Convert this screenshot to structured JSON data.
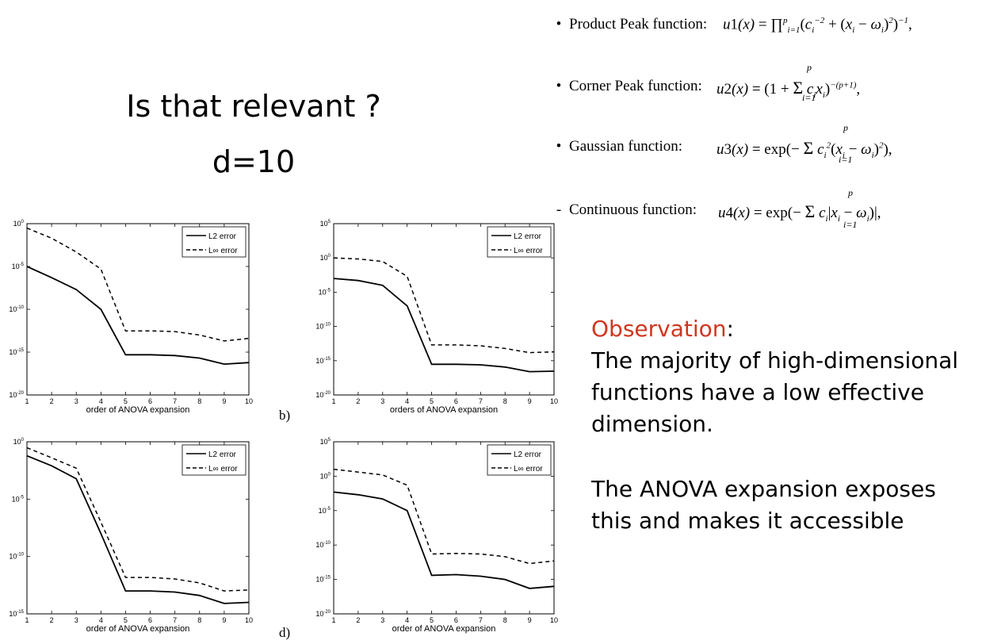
{
  "slide": {
    "title": "Is that relevant ?",
    "subtitle": "d=10",
    "observation_label": "Observation",
    "observation_colon": ":",
    "observation_text": "The majority of high-dimensional functions have a low effective dimension.",
    "observation_text2": "The ANOVA expansion exposes this and makes it accessible",
    "accent_color": "#d0361f"
  },
  "functions": [
    {
      "bullet": "•",
      "label": "Product Peak function:",
      "formula": "u1(x) = ∏_{i=1}^{p} (c_i^{-2} + (x_i − ω_i)^2)^{-1},"
    },
    {
      "bullet": "•",
      "label": "Corner Peak function:",
      "formula": "u2(x) = (1 + Σ_{i=1}^{p} c_i x_i)^{-(p+1)},"
    },
    {
      "bullet": "•",
      "label": "Gaussian function:",
      "formula": "u3(x) = exp(− Σ_{i=1}^{p} c_i^2 (x_i − ω_i)^2),"
    },
    {
      "bullet": "-",
      "label": "Continuous function:",
      "formula": "u4(x) = exp(− Σ_{i=1}^{p} c_i |x_i − ω_i|),"
    }
  ],
  "panel_labels": {
    "b": "b)",
    "d": "d)"
  },
  "chart_data": [
    {
      "type": "line",
      "yscale": "log",
      "xlabel": "order of ANOVA expansion",
      "x": [
        1,
        2,
        3,
        4,
        5,
        6,
        7,
        8,
        9,
        10
      ],
      "xlim": [
        1,
        10
      ],
      "ylim": [
        1e-20,
        1
      ],
      "yticks": [
        "10^0",
        "10^-5",
        "10^-10",
        "10^-15",
        "10^-20"
      ],
      "legend": "top-right",
      "series": [
        {
          "name": "L2 error",
          "style": "solid",
          "values": [
            1e-05,
            5e-07,
            2e-08,
            1e-10,
            5e-16,
            5e-16,
            4e-16,
            2e-16,
            4e-17,
            6e-17
          ]
        },
        {
          "name": "L∞ error",
          "style": "dashed",
          "values": [
            0.3,
            0.02,
            0.0005,
            5e-06,
            3e-13,
            3e-13,
            2.5e-13,
            1e-13,
            2e-14,
            4e-14
          ]
        }
      ]
    },
    {
      "type": "line",
      "yscale": "log",
      "xlabel": "orders of ANOVA expansion",
      "x": [
        1,
        2,
        3,
        4,
        5,
        6,
        7,
        8,
        9,
        10
      ],
      "xlim": [
        1,
        10
      ],
      "ylim": [
        1e-20,
        100000.0
      ],
      "yticks": [
        "10^5",
        "10^0",
        "10^-5",
        "10^-10",
        "10^-15",
        "10^-20"
      ],
      "legend": "top-right",
      "series": [
        {
          "name": "L2 error",
          "style": "solid",
          "values": [
            0.001,
            0.0005,
            0.0001,
            1e-07,
            3e-16,
            3e-16,
            2.5e-16,
            1.2e-16,
            2.5e-17,
            3e-17
          ]
        },
        {
          "name": "L∞ error",
          "style": "dashed",
          "values": [
            1,
            0.7,
            0.3,
            0.002,
            2e-13,
            2e-13,
            1.5e-13,
            6e-14,
            1.5e-14,
            2e-14
          ]
        }
      ]
    },
    {
      "type": "line",
      "yscale": "log",
      "xlabel": "order of ANOVA expansion",
      "x": [
        1,
        2,
        3,
        4,
        5,
        6,
        7,
        8,
        9,
        10
      ],
      "xlim": [
        1,
        10
      ],
      "ylim": [
        1e-15,
        1
      ],
      "yticks": [
        "10^0",
        "10^-5",
        "10^-10",
        "10^-15"
      ],
      "legend": "top-right",
      "series": [
        {
          "name": "L2 error",
          "style": "solid",
          "values": [
            0.06,
            0.008,
            0.0006,
            1e-08,
            1e-13,
            1e-13,
            8e-14,
            4e-14,
            8e-15,
            1e-14
          ]
        },
        {
          "name": "L∞ error",
          "style": "dashed",
          "values": [
            0.3,
            0.04,
            0.005,
            1e-07,
            1.5e-12,
            1.5e-12,
            1.1e-12,
            5e-13,
            1e-13,
            1.2e-13
          ]
        }
      ]
    },
    {
      "type": "line",
      "yscale": "log",
      "xlabel": "order of ANOVA expansion",
      "x": [
        1,
        2,
        3,
        4,
        5,
        6,
        7,
        8,
        9,
        10
      ],
      "xlim": [
        1,
        10
      ],
      "ylim": [
        1e-20,
        100000.0
      ],
      "yticks": [
        "10^5",
        "10^0",
        "10^-5",
        "10^-10",
        "10^-15",
        "10^-20"
      ],
      "legend": "top-right",
      "series": [
        {
          "name": "L2 error",
          "style": "solid",
          "values": [
            0.005,
            0.002,
            0.0005,
            1e-05,
            4e-15,
            5e-15,
            3e-15,
            1e-15,
            5e-17,
            1e-16
          ]
        },
        {
          "name": "L∞ error",
          "style": "dashed",
          "values": [
            10,
            4,
            1.5,
            0.05,
            5e-12,
            6e-12,
            5e-12,
            2e-12,
            2e-13,
            5e-13
          ]
        }
      ]
    }
  ]
}
